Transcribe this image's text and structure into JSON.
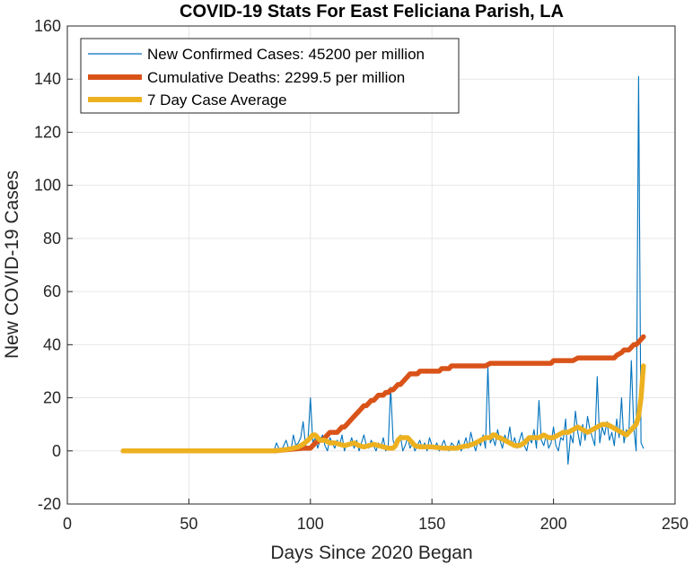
{
  "chart_data": {
    "type": "line",
    "title": "COVID-19 Stats For East Feliciana Parish, LA",
    "xlabel": "Days Since 2020 Began",
    "ylabel": "New COVID-19 Cases",
    "xlim": [
      0,
      250
    ],
    "ylim": [
      -20,
      160
    ],
    "xticks": [
      "0",
      "50",
      "100",
      "150",
      "200",
      "250"
    ],
    "yticks": [
      "-20",
      "0",
      "20",
      "40",
      "60",
      "80",
      "100",
      "120",
      "140",
      "160"
    ],
    "grid": true,
    "legend_position": "top-left",
    "colors": {
      "new_cases": "#0072BD",
      "deaths": "#D95319",
      "avg": "#EDB120",
      "grid": "#e6e6e6",
      "axis": "#262626"
    },
    "series": [
      {
        "name": "New Confirmed Cases: 45200 per million",
        "x": [
          23,
          30,
          40,
          50,
          60,
          70,
          80,
          85,
          86,
          87,
          88,
          89,
          90,
          91,
          92,
          93,
          94,
          95,
          96,
          97,
          98,
          99,
          100,
          101,
          102,
          103,
          104,
          105,
          106,
          107,
          108,
          109,
          110,
          111,
          112,
          113,
          114,
          115,
          116,
          117,
          118,
          119,
          120,
          121,
          122,
          123,
          124,
          125,
          126,
          127,
          128,
          129,
          130,
          131,
          132,
          133,
          134,
          135,
          136,
          137,
          138,
          139,
          140,
          141,
          142,
          143,
          144,
          145,
          146,
          147,
          148,
          149,
          150,
          151,
          152,
          153,
          154,
          155,
          156,
          157,
          158,
          159,
          160,
          161,
          162,
          163,
          164,
          165,
          166,
          167,
          168,
          169,
          170,
          171,
          172,
          173,
          174,
          175,
          176,
          177,
          178,
          179,
          180,
          181,
          182,
          183,
          184,
          185,
          186,
          187,
          188,
          189,
          190,
          191,
          192,
          193,
          194,
          195,
          196,
          197,
          198,
          199,
          200,
          201,
          202,
          203,
          204,
          205,
          206,
          207,
          208,
          209,
          210,
          211,
          212,
          213,
          214,
          215,
          216,
          217,
          218,
          219,
          220,
          221,
          222,
          223,
          224,
          225,
          226,
          227,
          228,
          229,
          230,
          231,
          232,
          233,
          234,
          235,
          236,
          237
        ],
        "y": [
          0,
          0,
          0,
          0,
          0,
          0,
          0,
          0,
          3,
          1,
          0,
          2,
          4,
          1,
          0,
          6,
          2,
          3,
          5,
          11,
          2,
          4,
          20,
          3,
          5,
          1,
          4,
          6,
          2,
          0,
          5,
          3,
          1,
          4,
          2,
          6,
          0,
          3,
          2,
          5,
          1,
          4,
          0,
          3,
          6,
          2,
          1,
          4,
          2,
          0,
          3,
          1,
          5,
          0,
          2,
          24,
          4,
          1,
          3,
          6,
          0,
          2,
          5,
          1,
          3,
          0,
          2,
          4,
          1,
          3,
          0,
          5,
          2,
          1,
          3,
          0,
          2,
          4,
          1,
          0,
          3,
          2,
          1,
          4,
          0,
          2,
          5,
          1,
          7,
          3,
          0,
          4,
          2,
          6,
          1,
          32,
          3,
          5,
          2,
          8,
          4,
          1,
          6,
          3,
          9,
          2,
          5,
          1,
          4,
          7,
          2,
          0,
          5,
          3,
          8,
          1,
          19,
          4,
          2,
          6,
          1,
          3,
          9,
          2,
          0,
          5,
          4,
          12,
          -5,
          6,
          3,
          15,
          7,
          2,
          10,
          4,
          13,
          8,
          5,
          2,
          28,
          3,
          9,
          6,
          11,
          4,
          7,
          2,
          12,
          5,
          20,
          3,
          8,
          6,
          34,
          9,
          0,
          141,
          3,
          1
        ]
      },
      {
        "name": "Cumulative Deaths: 2299.5 per million",
        "x": [
          23,
          85,
          97,
          100,
          101,
          102,
          104,
          105,
          106,
          107,
          108,
          109,
          110,
          111,
          112,
          113,
          114,
          115,
          116,
          117,
          118,
          119,
          120,
          121,
          122,
          123,
          124,
          125,
          126,
          127,
          128,
          129,
          130,
          131,
          132,
          133,
          134,
          135,
          136,
          137,
          138,
          139,
          140,
          141,
          142,
          143,
          144,
          145,
          146,
          147,
          148,
          149,
          150,
          151,
          152,
          153,
          154,
          155,
          156,
          157,
          158,
          159,
          160,
          162,
          164,
          166,
          168,
          170,
          172,
          174,
          175,
          176,
          178,
          180,
          185,
          190,
          195,
          199,
          200,
          202,
          204,
          206,
          208,
          210,
          212,
          214,
          216,
          218,
          220,
          222,
          224,
          225,
          226,
          228,
          229,
          230,
          231,
          232,
          233,
          234,
          235,
          236,
          237
        ],
        "y": [
          0,
          0,
          1,
          1,
          2,
          3,
          4,
          4,
          5,
          6,
          7,
          7,
          7,
          7,
          8,
          9,
          9,
          10,
          11,
          12,
          13,
          14,
          15,
          16,
          17,
          17,
          18,
          19,
          19,
          20,
          21,
          21,
          21,
          22,
          22,
          23,
          23,
          24,
          25,
          25,
          26,
          27,
          28,
          29,
          29,
          29,
          29,
          30,
          30,
          30,
          30,
          30,
          30,
          30,
          30,
          30,
          31,
          31,
          31,
          31,
          32,
          32,
          32,
          32,
          32,
          32,
          32,
          32,
          32,
          33,
          33,
          33,
          33,
          33,
          33,
          33,
          33,
          33,
          34,
          34,
          34,
          34,
          34,
          35,
          35,
          35,
          35,
          35,
          35,
          35,
          35,
          35,
          36,
          37,
          38,
          38,
          38,
          39,
          40,
          40,
          41,
          42,
          43
        ]
      },
      {
        "name": "7 Day Case Average",
        "x": [
          23,
          50,
          85,
          90,
          93,
          95,
          97,
          99,
          100,
          101,
          102,
          103,
          104,
          106,
          108,
          110,
          112,
          114,
          116,
          118,
          120,
          122,
          124,
          126,
          128,
          130,
          132,
          134,
          135,
          136,
          137,
          138,
          139,
          140,
          141,
          142,
          143,
          145,
          150,
          155,
          160,
          162,
          165,
          168,
          170,
          172,
          174,
          175,
          176,
          177,
          178,
          180,
          182,
          184,
          186,
          188,
          190,
          192,
          194,
          196,
          198,
          200,
          202,
          204,
          206,
          208,
          210,
          212,
          214,
          216,
          218,
          220,
          222,
          224,
          226,
          228,
          230,
          232,
          234,
          235,
          236,
          237
        ],
        "y": [
          0,
          0,
          0,
          0.5,
          1,
          1.5,
          2.5,
          4,
          5,
          6,
          6,
          5,
          4,
          4,
          3,
          3,
          2.5,
          2,
          2.5,
          3,
          2,
          1.5,
          2,
          2.5,
          2,
          1.5,
          1,
          1,
          2,
          4,
          5,
          5,
          5,
          5,
          4,
          3,
          2,
          1.5,
          1.5,
          1,
          1,
          1.5,
          2,
          3,
          4,
          5,
          5,
          6,
          6,
          5,
          5,
          4,
          3,
          2,
          2,
          3,
          5,
          5,
          5,
          6,
          5,
          5,
          6,
          7,
          7,
          8,
          9,
          8,
          7,
          8,
          9,
          10,
          10,
          9,
          8,
          7,
          6,
          8,
          10,
          13,
          20,
          32
        ]
      }
    ]
  }
}
